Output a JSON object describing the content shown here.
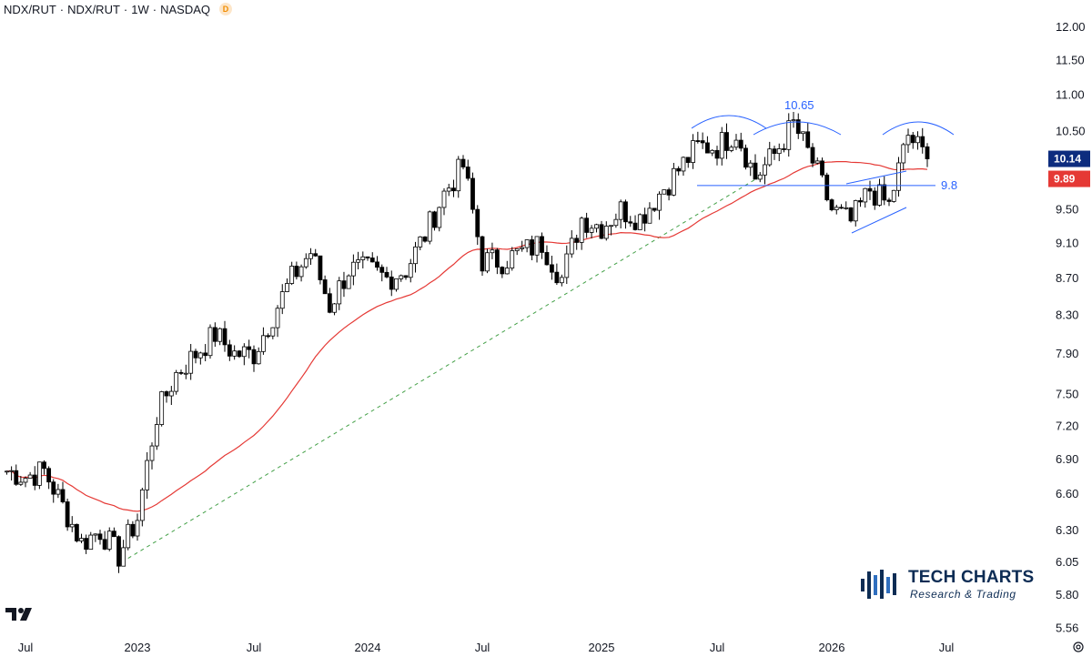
{
  "header": {
    "symbol": "NDX/RUT",
    "description": "NDX/RUT",
    "interval": "1W",
    "exchange": "NASDAQ",
    "badge": "D"
  },
  "logo": {
    "title": "TECH CHARTS",
    "subtitle": "Research & Trading"
  },
  "colors": {
    "up_candle": "#ffffff",
    "down_candle": "#000000",
    "moving_average": "#e53935",
    "trendline": "#43a047",
    "annotations": "#2962ff",
    "last_price_tag": "#0d2c7e",
    "ma_price_tag": "#e53935"
  },
  "chart_data": {
    "type": "candlestick",
    "title": "",
    "y_scale": "log",
    "y_ticks": [
      "5.56",
      "5.80",
      "6.05",
      "6.30",
      "6.60",
      "6.90",
      "7.20",
      "7.50",
      "7.90",
      "8.30",
      "8.70",
      "9.10",
      "9.50",
      "9.89",
      "10.14",
      "10.50",
      "11.00",
      "11.50",
      "12.00"
    ],
    "y_tick_values": [
      5.56,
      5.8,
      6.05,
      6.3,
      6.6,
      6.9,
      7.2,
      7.5,
      7.9,
      8.3,
      8.7,
      9.1,
      9.5,
      10.5,
      11.0,
      11.5,
      12.0
    ],
    "x_ticks": [
      "Jul",
      "2023",
      "Jul",
      "2024",
      "Jul",
      "2025",
      "Jul",
      "2026",
      "Jul"
    ],
    "last_price": "10.14",
    "ma_value": "9.89",
    "series": [
      {
        "name": "",
        "kind": "close_path_weekly",
        "x": [
          "2022-06",
          "2022-07",
          "2022-08",
          "2022-09",
          "2022-10",
          "2022-11",
          "2022-12",
          "2023-01",
          "2023-02",
          "2023-03",
          "2023-04",
          "2023-05",
          "2023-06",
          "2023-07",
          "2023-08",
          "2023-09",
          "2023-10",
          "2023-11",
          "2023-12",
          "2024-01",
          "2024-02",
          "2024-03",
          "2024-04",
          "2024-05",
          "2024-06",
          "2024-07",
          "2024-08",
          "2024-09",
          "2024-10",
          "2024-11",
          "2024-12",
          "2025-01",
          "2025-02",
          "2025-03",
          "2025-04",
          "2025-05",
          "2025-06",
          "2025-07",
          "2025-08",
          "2025-09",
          "2025-10",
          "2025-11",
          "2025-12",
          "2026-01",
          "2026-02",
          "2026-03",
          "2026-04",
          "2026-05",
          "2026-06"
        ],
        "y": [
          6.8,
          6.75,
          6.8,
          6.5,
          6.2,
          6.3,
          6.1,
          6.4,
          7.3,
          7.7,
          7.9,
          8.1,
          7.9,
          7.9,
          8.3,
          8.7,
          9.0,
          8.4,
          8.8,
          8.8,
          8.7,
          8.8,
          9.2,
          9.7,
          10.05,
          8.9,
          8.9,
          9.0,
          9.1,
          8.7,
          9.4,
          9.3,
          9.5,
          9.4,
          9.7,
          10.0,
          10.3,
          10.3,
          10.5,
          9.9,
          10.2,
          10.6,
          10.1,
          9.5,
          9.35,
          9.75,
          9.55,
          10.45,
          10.14
        ]
      }
    ],
    "annotations": [
      {
        "text": "10.65",
        "kind": "label",
        "value": 10.65
      },
      {
        "text": "9.8",
        "kind": "horizontal_level",
        "value": 9.8
      },
      {
        "text": "",
        "kind": "moving_average"
      },
      {
        "text": "",
        "kind": "trendline_dashed"
      }
    ]
  }
}
